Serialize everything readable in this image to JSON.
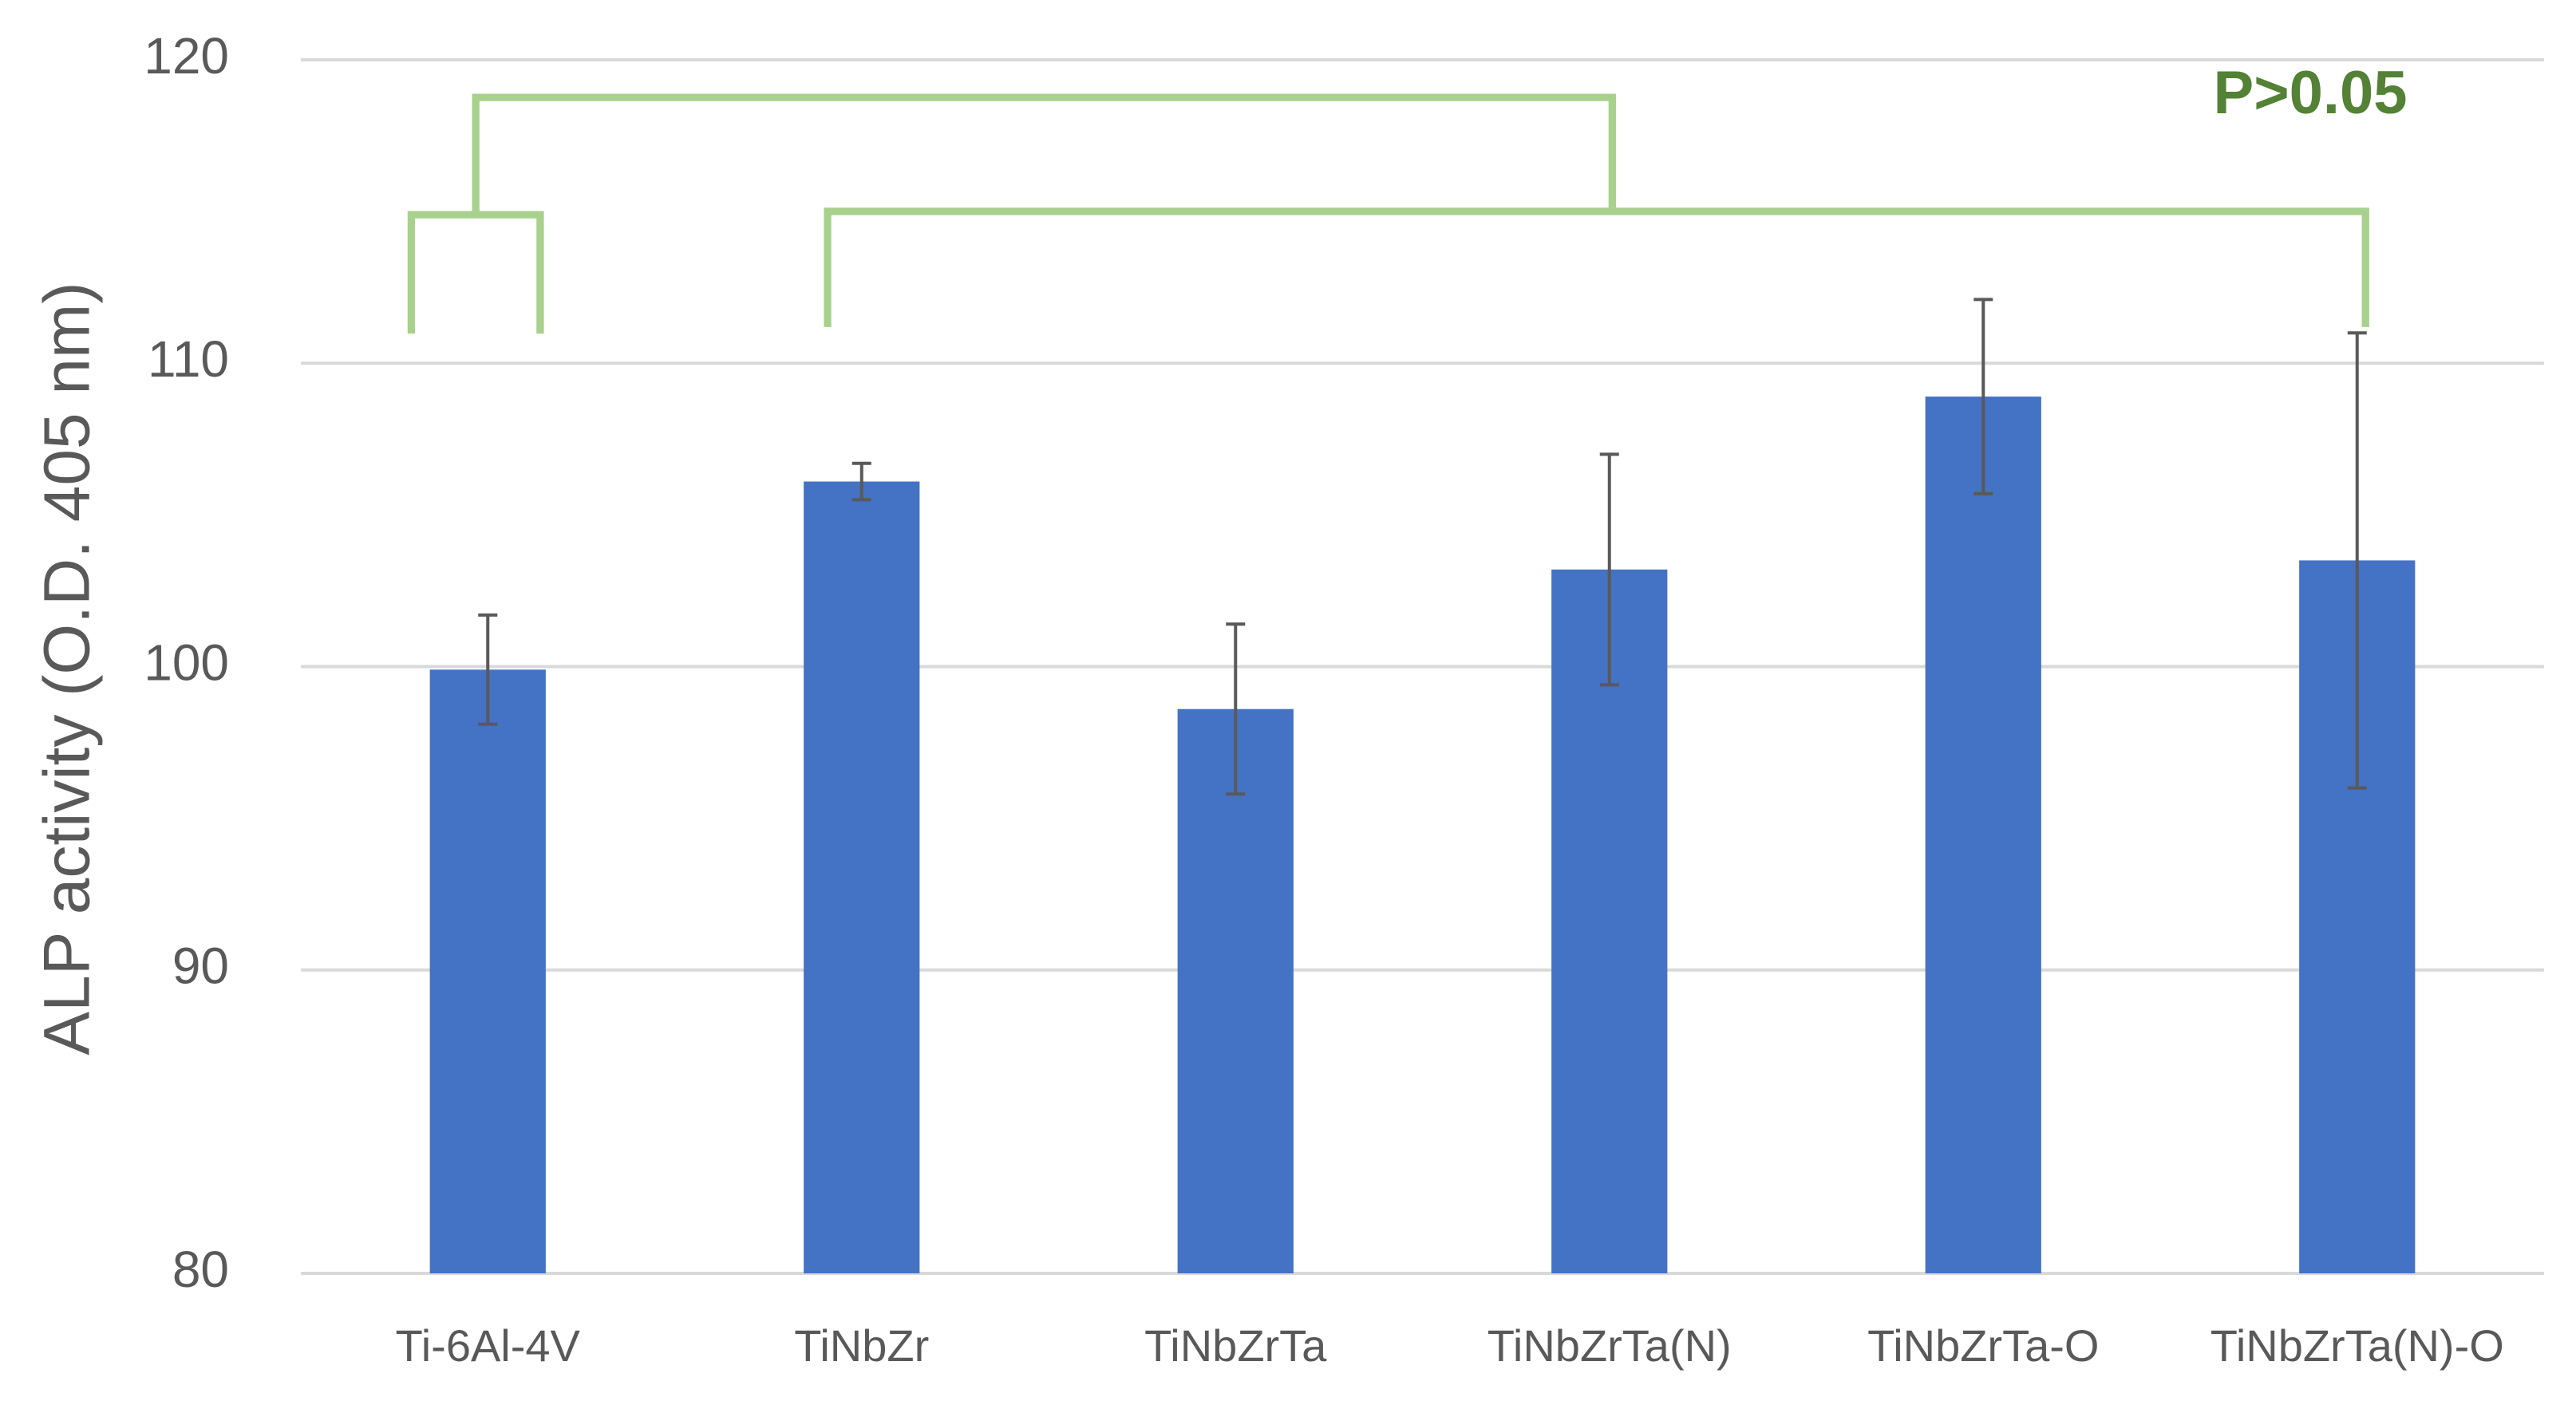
{
  "chart_data": {
    "type": "bar",
    "y_label": "ALP activity (O.D. 405 nm)",
    "annotation": "P>0.05",
    "categories": [
      "Ti-6Al-4V",
      "TiNbZr",
      "TiNbZrTa",
      "TiNbZrTa(N)",
      "TiNbZrTa-O",
      "TiNbZrTa(N)-O"
    ],
    "values": [
      99.9,
      106.1,
      98.6,
      103.2,
      108.9,
      103.5
    ],
    "errors": [
      1.8,
      0.6,
      2.8,
      3.8,
      3.2,
      7.5
    ],
    "color": "#4472c4",
    "error_color": "#595959",
    "ylim": [
      80,
      120
    ],
    "yticks": [
      80,
      90,
      100,
      110,
      120
    ],
    "grid": true
  }
}
